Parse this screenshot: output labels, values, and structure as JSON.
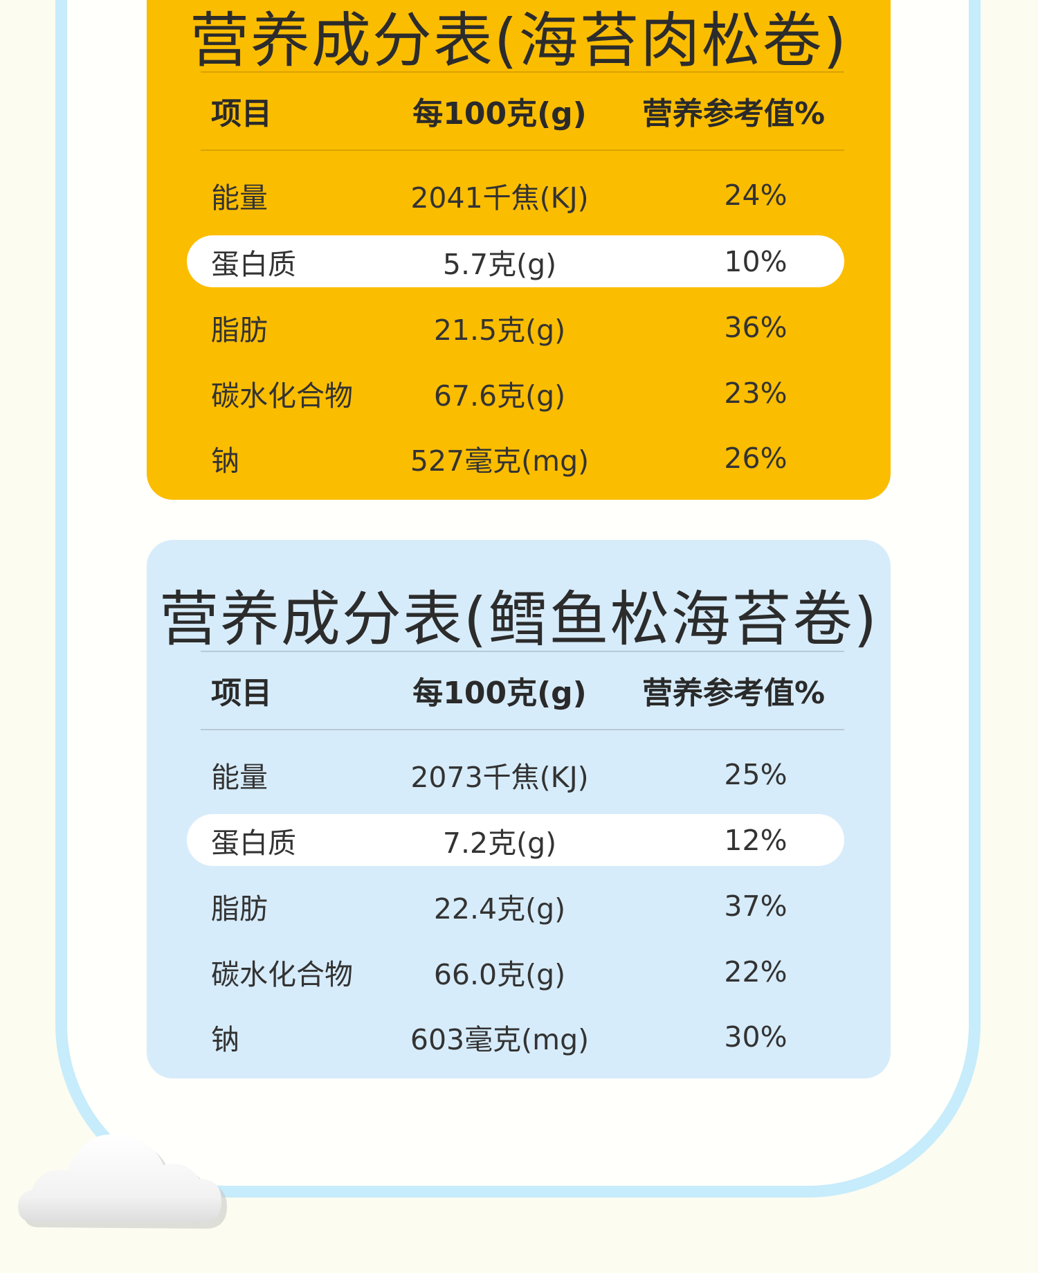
{
  "tables": [
    {
      "title": "营养成分表(海苔肉松卷)",
      "headers": [
        "项目",
        "每100克(g)",
        "营养参考值%"
      ],
      "rows": [
        [
          "能量",
          "2041千焦(KJ)",
          "24%"
        ],
        [
          "蛋白质",
          "5.7克(g)",
          "10%"
        ],
        [
          "脂肪",
          "21.5克(g)",
          "36%"
        ],
        [
          "碳水化合物",
          "67.6克(g)",
          "23%"
        ],
        [
          "钠",
          "527毫克(mg)",
          "26%"
        ]
      ]
    },
    {
      "title": "营养成分表(鳕鱼松海苔卷)",
      "headers": [
        "项目",
        "每100克(g)",
        "营养参考值%"
      ],
      "rows": [
        [
          "能量",
          "2073千焦(KJ)",
          "25%"
        ],
        [
          "蛋白质",
          "7.2克(g)",
          "12%"
        ],
        [
          "脂肪",
          "22.4克(g)",
          "37%"
        ],
        [
          "碳水化合物",
          "66.0克(g)",
          "22%"
        ],
        [
          "钠",
          "603毫克(mg)",
          "30%"
        ]
      ]
    }
  ],
  "colors": {
    "background": "#fdfcf1",
    "frame_border": "#c7ecfb",
    "card_yellow": "#fbbd00",
    "card_blue": "#d7ecfa",
    "highlight_row": "#ffffff"
  },
  "icons": [
    "cloud-icon"
  ]
}
